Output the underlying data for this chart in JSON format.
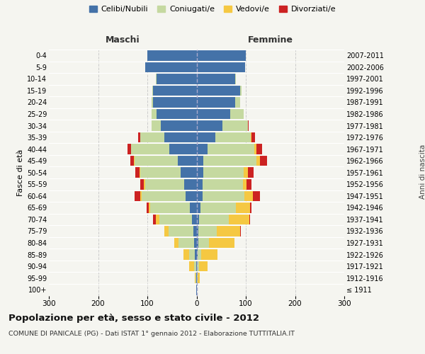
{
  "age_groups": [
    "100+",
    "95-99",
    "90-94",
    "85-89",
    "80-84",
    "75-79",
    "70-74",
    "65-69",
    "60-64",
    "55-59",
    "50-54",
    "45-49",
    "40-44",
    "35-39",
    "30-34",
    "25-29",
    "20-24",
    "15-19",
    "10-14",
    "5-9",
    "0-4"
  ],
  "birth_years": [
    "≤ 1911",
    "1912-1916",
    "1917-1921",
    "1922-1926",
    "1927-1931",
    "1932-1936",
    "1937-1941",
    "1942-1946",
    "1947-1951",
    "1952-1956",
    "1957-1961",
    "1962-1966",
    "1967-1971",
    "1972-1976",
    "1977-1981",
    "1982-1986",
    "1987-1991",
    "1992-1996",
    "1997-2001",
    "2002-2006",
    "2007-2011"
  ],
  "colors": {
    "celibe": "#4472a8",
    "coniugato": "#c5d9a0",
    "vedovo": "#f5c842",
    "divorziato": "#cc2222"
  },
  "maschi": {
    "celibe": [
      1,
      1,
      1,
      3,
      5,
      7,
      10,
      14,
      22,
      25,
      32,
      38,
      55,
      65,
      72,
      82,
      88,
      88,
      82,
      105,
      100
    ],
    "coniugato": [
      0,
      1,
      4,
      12,
      32,
      50,
      65,
      80,
      90,
      80,
      82,
      88,
      78,
      50,
      20,
      10,
      4,
      2,
      1,
      0,
      0
    ],
    "vedovo": [
      0,
      1,
      10,
      12,
      8,
      8,
      8,
      3,
      2,
      2,
      2,
      1,
      0,
      0,
      0,
      0,
      0,
      0,
      0,
      0,
      0
    ],
    "divorziato": [
      0,
      0,
      0,
      0,
      0,
      0,
      5,
      5,
      12,
      8,
      8,
      8,
      8,
      3,
      0,
      0,
      0,
      0,
      0,
      0,
      0
    ]
  },
  "femmine": {
    "nubile": [
      1,
      1,
      1,
      2,
      3,
      3,
      5,
      8,
      12,
      12,
      14,
      14,
      22,
      38,
      52,
      68,
      78,
      88,
      78,
      98,
      100
    ],
    "coniugata": [
      0,
      1,
      4,
      8,
      22,
      38,
      60,
      72,
      85,
      82,
      82,
      108,
      95,
      72,
      52,
      28,
      10,
      4,
      2,
      0,
      0
    ],
    "vedova": [
      0,
      4,
      18,
      32,
      52,
      48,
      42,
      28,
      18,
      8,
      8,
      7,
      4,
      2,
      0,
      0,
      0,
      0,
      0,
      0,
      0
    ],
    "divorziata": [
      0,
      0,
      0,
      0,
      0,
      1,
      2,
      4,
      14,
      10,
      12,
      14,
      12,
      7,
      2,
      0,
      0,
      0,
      0,
      0,
      0
    ]
  },
  "xlim": 300,
  "title": "Popolazione per età, sesso e stato civile - 2012",
  "subtitle": "COMUNE DI PANICALE (PG) - Dati ISTAT 1° gennaio 2012 - Elaborazione TUTTITALIA.IT",
  "ylabel_left": "Fasce di età",
  "ylabel_right": "Anni di nascita",
  "header_maschi": "Maschi",
  "header_femmine": "Femmine",
  "legend_labels": [
    "Celibi/Nubili",
    "Coniugati/e",
    "Vedovi/e",
    "Divorziati/e"
  ],
  "bg_color": "#f5f5f0"
}
